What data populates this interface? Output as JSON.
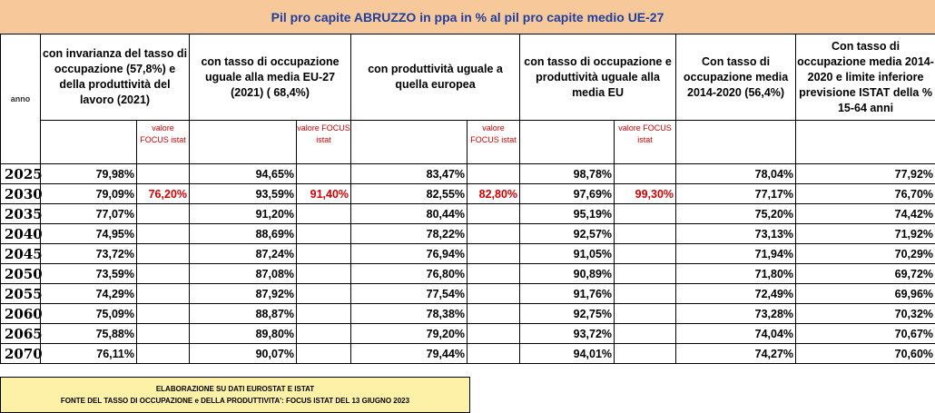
{
  "title": "Pil pro capite ABRUZZO in ppa in %  al pil pro capite medio UE-27",
  "anno_label": "anno",
  "columns": [
    "con invarianza del tasso di occupazione (57,8%) e della produttività del lavoro (2021)",
    "con tasso di occupazione uguale alla media EU-27 (2021) ( 68,4%)",
    "con produttività uguale a quella europea",
    "con tasso di occupazione e produttività uguale alla media EU",
    "Con tasso di occupazione media 2014-2020 (56,4%)",
    "Con tasso di occupazione media 2014-2020 e limite inferiore previsione ISTAT della % 15-64 anni"
  ],
  "focus_label": "valore FOCUS istat",
  "rows": [
    {
      "year": "2025",
      "c1": "79,98%",
      "f1": "",
      "c2": "94,65%",
      "f2": "",
      "c3": "83,47%",
      "f3": "",
      "c4": "98,78%",
      "f4": "",
      "c5": "78,04%",
      "c6": "77,92%"
    },
    {
      "year": "2030",
      "c1": "79,09%",
      "f1": "76,20%",
      "c2": "93,59%",
      "f2": "91,40%",
      "c3": "82,55%",
      "f3": "82,80%",
      "c4": "97,69%",
      "f4": "99,30%",
      "c5": "77,17%",
      "c6": "76,70%"
    },
    {
      "year": "2035",
      "c1": "77,07%",
      "f1": "",
      "c2": "91,20%",
      "f2": "",
      "c3": "80,44%",
      "f3": "",
      "c4": "95,19%",
      "f4": "",
      "c5": "75,20%",
      "c6": "74,42%"
    },
    {
      "year": "2040",
      "c1": "74,95%",
      "f1": "",
      "c2": "88,69%",
      "f2": "",
      "c3": "78,22%",
      "f3": "",
      "c4": "92,57%",
      "f4": "",
      "c5": "73,13%",
      "c6": "71,92%"
    },
    {
      "year": "2045",
      "c1": "73,72%",
      "f1": "",
      "c2": "87,24%",
      "f2": "",
      "c3": "76,94%",
      "f3": "",
      "c4": "91,05%",
      "f4": "",
      "c5": "71,94%",
      "c6": "70,29%"
    },
    {
      "year": "2050",
      "c1": "73,59%",
      "f1": "",
      "c2": "87,08%",
      "f2": "",
      "c3": "76,80%",
      "f3": "",
      "c4": "90,89%",
      "f4": "",
      "c5": "71,80%",
      "c6": "69,72%"
    },
    {
      "year": "2055",
      "c1": "74,29%",
      "f1": "",
      "c2": "87,92%",
      "f2": "",
      "c3": "77,54%",
      "f3": "",
      "c4": "91,76%",
      "f4": "",
      "c5": "72,49%",
      "c6": "69,96%"
    },
    {
      "year": "2060",
      "c1": "75,09%",
      "f1": "",
      "c2": "88,87%",
      "f2": "",
      "c3": "78,38%",
      "f3": "",
      "c4": "92,75%",
      "f4": "",
      "c5": "73,28%",
      "c6": "70,32%"
    },
    {
      "year": "2065",
      "c1": "75,88%",
      "f1": "",
      "c2": "89,80%",
      "f2": "",
      "c3": "79,20%",
      "f3": "",
      "c4": "93,72%",
      "f4": "",
      "c5": "74,04%",
      "c6": "70,67%"
    },
    {
      "year": "2070",
      "c1": "76,11%",
      "f1": "",
      "c2": "90,07%",
      "f2": "",
      "c3": "79,44%",
      "f3": "",
      "c4": "94,01%",
      "f4": "",
      "c5": "74,27%",
      "c6": "70,60%"
    }
  ],
  "footer": {
    "line1": "ELABORAZIONE SU DATI EUROSTAT E ISTAT",
    "line2": "FONTE DEL TASSO DI OCCUPAZIONE  e DELLA PRODUTTIVITA': FOCUS ISTAT DEL 13 GIUGNO 2023"
  },
  "colors": {
    "title_bg": "#f7c899",
    "title_text": "#1f3f9f",
    "focus_text": "#d40000",
    "footer_bg": "#fdf1a8"
  }
}
